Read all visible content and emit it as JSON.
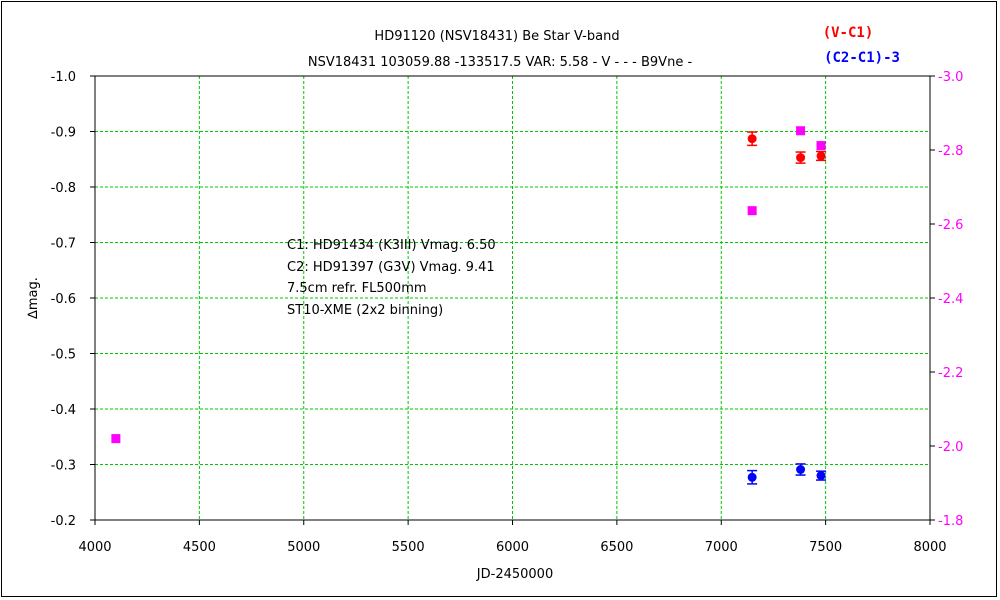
{
  "chart_data": {
    "type": "scatter",
    "title": "HD91120 (NSV18431)   Be Star   V-band",
    "subtitle": "NSV18431 103059.88 -133517.5 VAR: 5.58 - V - - - B9Vne -",
    "xlabel": "JD-2450000",
    "ylabel": "∆mag.",
    "xlim": [
      4000,
      8000
    ],
    "ylim": [
      -0.2,
      -1.0
    ],
    "y2lim": [
      -1.8,
      -3.0
    ],
    "x_ticks": [
      4000,
      4500,
      5000,
      5500,
      6000,
      6500,
      7000,
      7500,
      8000
    ],
    "x_tick_labels": [
      "4000",
      "4500",
      "5000",
      "5500",
      "6000",
      "6500",
      "7000",
      "7500",
      "8000"
    ],
    "y_ticks": [
      -1.0,
      -0.9,
      -0.8,
      -0.7,
      -0.6,
      -0.5,
      -0.4,
      -0.3,
      -0.2
    ],
    "y_tick_labels": [
      "-1.0",
      "-0.9",
      "-0.8",
      "-0.7",
      "-0.6",
      "-0.5",
      "-0.4",
      "-0.3",
      "-0.2"
    ],
    "y2_ticks": [
      -3.0,
      -2.8,
      -2.6,
      -2.4,
      -2.2,
      -2.0,
      -1.8
    ],
    "y2_tick_labels": [
      "-3.0",
      "-2.8",
      "-2.6",
      "-2.4",
      "-2.2",
      "-2.0",
      "-1.8"
    ],
    "grid": true,
    "legend_position": "top-right",
    "series": [
      {
        "name": "(V-C1)",
        "color": "#ff0000",
        "marker": "circle",
        "axis": "left",
        "error_bars": true,
        "points": [
          {
            "x": 7148,
            "y": -0.887,
            "err": 0.012
          },
          {
            "x": 7380,
            "y": -0.853,
            "err": 0.01
          },
          {
            "x": 7478,
            "y": -0.856,
            "err": 0.008
          }
        ]
      },
      {
        "name": "(C2-C1)-3",
        "color": "#0000ff",
        "marker": "circle",
        "axis": "left",
        "error_bars": true,
        "points": [
          {
            "x": 7148,
            "y": -0.277,
            "err": 0.012
          },
          {
            "x": 7380,
            "y": -0.291,
            "err": 0.01
          },
          {
            "x": 7478,
            "y": -0.28,
            "err": 0.008
          }
        ]
      },
      {
        "color": "#ff00ff",
        "marker": "square",
        "axis": "right",
        "error_bars": false,
        "points": [
          {
            "x": 4100,
            "y": -2.02
          },
          {
            "x": 7148,
            "y": -2.636
          },
          {
            "x": 7380,
            "y": -2.852
          },
          {
            "x": 7478,
            "y": -2.812
          }
        ]
      }
    ],
    "annotations": [
      "C1: HD91434 (K3III) Vmag. 6.50",
      "C2: HD91397 (G3V) Vmag. 9.41",
      "7.5cm refr. FL500mm",
      "ST10-XME (2x2 binning)"
    ]
  }
}
